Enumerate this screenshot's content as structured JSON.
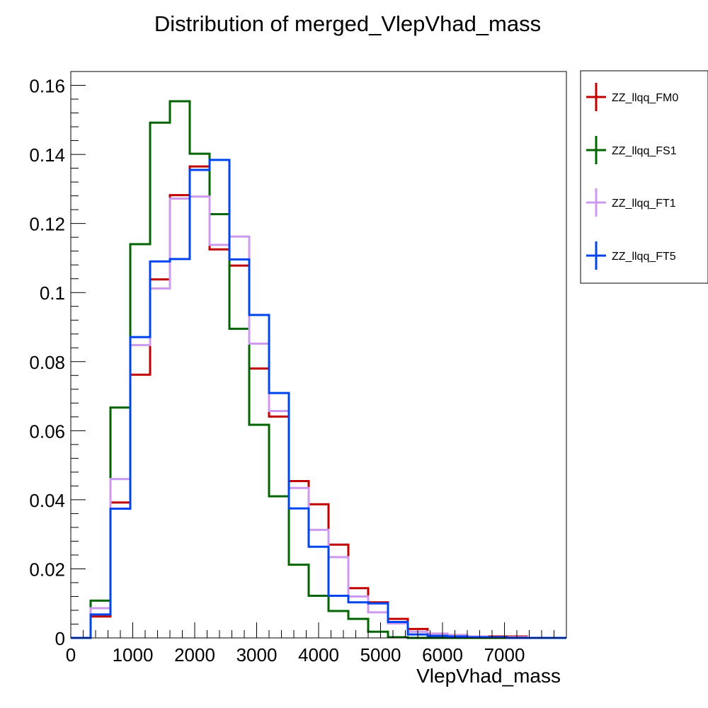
{
  "chart_data": {
    "type": "step-histogram",
    "title": "Distribution of merged_VlepVhad_mass",
    "xlabel": "VlepVhad_mass",
    "ylabel": "",
    "xlim": [
      0,
      8000
    ],
    "ylim": [
      0,
      0.164
    ],
    "x_ticks": [
      0,
      1000,
      2000,
      3000,
      4000,
      5000,
      6000,
      7000
    ],
    "x_tick_labels": [
      "0",
      "1000",
      "2000",
      "3000",
      "4000",
      "5000",
      "6000",
      "7000"
    ],
    "y_ticks": [
      0,
      0.02,
      0.04,
      0.06,
      0.08,
      0.1,
      0.12,
      0.14,
      0.16
    ],
    "y_tick_labels": [
      "0",
      "0.02",
      "0.04",
      "0.06",
      "0.08",
      "0.1",
      "0.12",
      "0.14",
      "0.16"
    ],
    "bin_edges": [
      0,
      320,
      640,
      960,
      1280,
      1600,
      1920,
      2240,
      2560,
      2880,
      3200,
      3520,
      3840,
      4160,
      4480,
      4800,
      5120,
      5440,
      5760,
      6080,
      6400,
      6720,
      7040,
      7360,
      7680,
      8000
    ],
    "legend_position": "outside-right",
    "grid": false,
    "series": [
      {
        "name": "ZZ_llqq_FM0",
        "color": "#c00000",
        "values": [
          0,
          0.0062,
          0.0392,
          0.0762,
          0.1038,
          0.1282,
          0.1365,
          0.1125,
          0.1078,
          0.078,
          0.0641,
          0.0454,
          0.0387,
          0.027,
          0.0144,
          0.0103,
          0.0055,
          0.0026,
          0.0012,
          0.0008,
          0.0004,
          0.0004,
          0.0004,
          0,
          0
        ]
      },
      {
        "name": "ZZ_llqq_FS1",
        "color": "#006400",
        "values": [
          0,
          0.0108,
          0.0667,
          0.114,
          0.1492,
          0.1554,
          0.1402,
          0.1227,
          0.0895,
          0.0617,
          0.041,
          0.0212,
          0.0122,
          0.0078,
          0.0055,
          0.0018,
          0.0002,
          0,
          0,
          0,
          0,
          0,
          0,
          0,
          0
        ]
      },
      {
        "name": "ZZ_llqq_FT1",
        "color": "#cc99ee",
        "values": [
          0,
          0.0086,
          0.046,
          0.0848,
          0.1012,
          0.1272,
          0.1278,
          0.1138,
          0.1162,
          0.0852,
          0.0657,
          0.0434,
          0.0313,
          0.0234,
          0.012,
          0.0074,
          0.0042,
          0.0018,
          0.0012,
          0.0008,
          0.0004,
          0.0002,
          0.0002,
          0,
          0
        ]
      },
      {
        "name": "ZZ_llqq_FT5",
        "color": "#0044ee",
        "values": [
          0,
          0.0068,
          0.0374,
          0.0871,
          0.109,
          0.1097,
          0.1355,
          0.1384,
          0.1096,
          0.0935,
          0.0709,
          0.0375,
          0.0264,
          0.0122,
          0.0103,
          0.01,
          0.0046,
          0.001,
          0.0006,
          0.0004,
          0.0002,
          0.0002,
          0,
          0,
          0
        ]
      }
    ]
  }
}
